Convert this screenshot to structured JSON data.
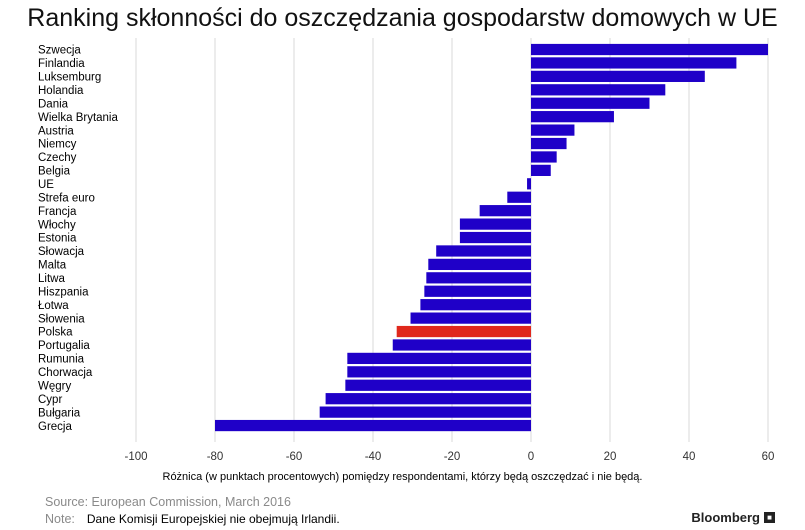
{
  "title": "Ranking skłonności do oszczędzania gospodarstw domowych w UE",
  "source": "Source: European Commission, March 2016",
  "note_label": "Note:",
  "note_text": "Dane Komisji Europejskiej nie obejmują Irlandii.",
  "brand": "Bloomberg",
  "colors": {
    "bar": "#1f00c8",
    "highlight": "#e0281c",
    "grid": "#d9d9d9"
  },
  "chart_data": {
    "type": "bar",
    "orientation": "horizontal",
    "title": "Ranking skłonności do oszczędzania gospodarstw domowych w UE",
    "xlabel": "Różnica (w punktach procentowych) pomiędzy respondentami, którzy będą oszczędzać i nie będą.",
    "ylabel": "",
    "xlim": [
      -100,
      60
    ],
    "xticks": [
      -100,
      -80,
      -60,
      -40,
      -20,
      0,
      20,
      40,
      60
    ],
    "grid": true,
    "highlight": "Polska",
    "categories": [
      "Szwecja",
      "Finlandia",
      "Luksemburg",
      "Holandia",
      "Dania",
      "Wielka Brytania",
      "Austria",
      "Niemcy",
      "Czechy",
      "Belgia",
      "UE",
      "Strefa euro",
      "Francja",
      "Włochy",
      "Estonia",
      "Słowacja",
      "Malta",
      "Litwa",
      "Hiszpania",
      "Łotwa",
      "Słowenia",
      "Polska",
      "Portugalia",
      "Rumunia",
      "Chorwacja",
      "Węgry",
      "Cypr",
      "Bułgaria",
      "Grecja"
    ],
    "values": [
      60,
      52,
      44,
      34,
      30,
      21,
      11,
      9,
      6.5,
      5,
      -1,
      -6,
      -13,
      -18,
      -18,
      -24,
      -26,
      -26.5,
      -27,
      -28,
      -30.5,
      -34,
      -35,
      -46.5,
      -46.5,
      -47,
      -52,
      -53.5,
      -80
    ]
  }
}
